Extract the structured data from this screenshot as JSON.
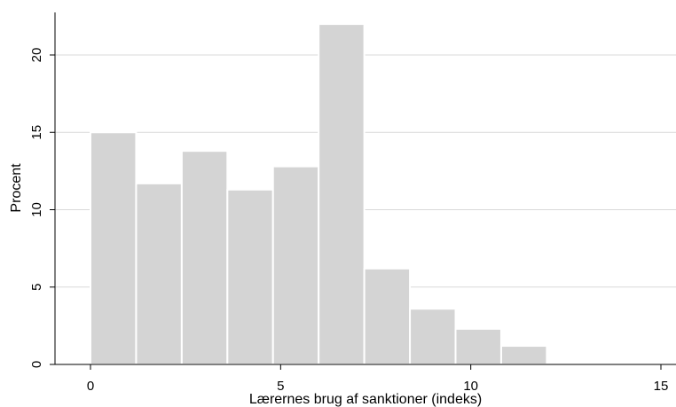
{
  "chart_data": {
    "type": "bar",
    "subtype": "histogram",
    "xlabel": "Lærernes brug af sanktioner (indeks)",
    "ylabel": "Procent",
    "xlim": [
      0,
      15
    ],
    "ylim": [
      0,
      22
    ],
    "x_ticks": [
      "0",
      "5",
      "10",
      "15"
    ],
    "y_ticks": [
      "0",
      "5",
      "10",
      "15",
      "20"
    ],
    "grid": "horizontal",
    "bins": [
      {
        "start": 0.0,
        "end": 1.2,
        "value": 15.0
      },
      {
        "start": 1.2,
        "end": 2.4,
        "value": 11.7
      },
      {
        "start": 2.4,
        "end": 3.6,
        "value": 13.8
      },
      {
        "start": 3.6,
        "end": 4.8,
        "value": 11.3
      },
      {
        "start": 4.8,
        "end": 6.0,
        "value": 12.8
      },
      {
        "start": 6.0,
        "end": 7.2,
        "value": 22.0
      },
      {
        "start": 7.2,
        "end": 8.4,
        "value": 6.2
      },
      {
        "start": 8.4,
        "end": 9.6,
        "value": 3.6
      },
      {
        "start": 9.6,
        "end": 10.8,
        "value": 2.3
      },
      {
        "start": 10.8,
        "end": 12.0,
        "value": 1.2
      }
    ],
    "colors": {
      "bar": "#d4d4d4",
      "bar_edge": "#ffffff",
      "grid": "#d9d9d9",
      "axis": "#000000"
    }
  }
}
